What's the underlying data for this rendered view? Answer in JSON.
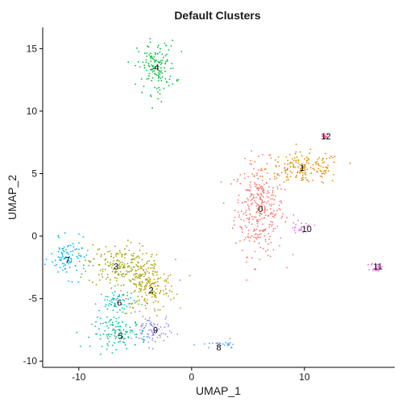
{
  "chart_data": {
    "type": "scatter",
    "title": "Default Clusters",
    "xlabel": "UMAP_1",
    "ylabel": "UMAP_2",
    "xlim": [
      -13.2,
      18.0
    ],
    "ylim": [
      -10.5,
      16.7
    ],
    "x_ticks": [
      -10,
      0,
      10
    ],
    "x_tick_labels": [
      "-10",
      "0",
      "10"
    ],
    "y_ticks": [
      -10,
      -5,
      0,
      5,
      10,
      15
    ],
    "y_tick_labels": [
      "-10",
      "-5",
      "0",
      "5",
      "10",
      "15"
    ],
    "grid": false,
    "legend": "none",
    "series": [
      {
        "name": "0",
        "label": "0",
        "color": "#F8766D",
        "center": [
          6.0,
          2.2
        ],
        "spread": [
          2.6,
          4.4
        ],
        "label_pos": [
          6.1,
          2.2
        ]
      },
      {
        "name": "1",
        "label": "1",
        "color": "#DE8C00",
        "center": [
          10.0,
          5.4
        ],
        "spread": [
          4.0,
          1.5
        ],
        "label_pos": [
          9.8,
          5.5
        ]
      },
      {
        "name": "2",
        "label": "2",
        "color": "#B79F00",
        "center": [
          -3.8,
          -4.0
        ],
        "spread": [
          2.8,
          2.5
        ],
        "label_pos": [
          -3.6,
          -4.3
        ]
      },
      {
        "name": "3",
        "label": "3",
        "color": "#9BA200",
        "center": [
          -6.5,
          -2.3
        ],
        "spread": [
          3.2,
          2.0
        ],
        "label_pos": [
          -6.7,
          -2.4
        ]
      },
      {
        "name": "4",
        "label": "4",
        "color": "#00BA38",
        "center": [
          -3.1,
          13.5
        ],
        "spread": [
          2.0,
          2.5
        ],
        "label_pos": [
          -3.1,
          13.5
        ]
      },
      {
        "name": "5",
        "label": "5",
        "color": "#00C08B",
        "center": [
          -6.4,
          -7.8
        ],
        "spread": [
          2.9,
          1.4
        ],
        "label_pos": [
          -6.3,
          -8.0
        ]
      },
      {
        "name": "6",
        "label": "6",
        "color": "#00BFC4",
        "center": [
          -6.6,
          -5.3
        ],
        "spread": [
          1.9,
          1.3
        ],
        "label_pos": [
          -6.4,
          -5.3
        ]
      },
      {
        "name": "7",
        "label": "7",
        "color": "#00B4F0",
        "center": [
          -10.9,
          -1.8
        ],
        "spread": [
          1.9,
          1.8
        ],
        "label_pos": [
          -11.0,
          -1.9
        ]
      },
      {
        "name": "8",
        "label": "8",
        "color": "#619CFF",
        "center": [
          2.6,
          -8.7
        ],
        "spread": [
          2.2,
          0.4
        ],
        "label_pos": [
          2.4,
          -8.9
        ]
      },
      {
        "name": "9",
        "label": "9",
        "color": "#8D8EF5",
        "center": [
          -3.5,
          -7.6
        ],
        "spread": [
          1.8,
          1.5
        ],
        "label_pos": [
          -3.2,
          -7.5
        ]
      },
      {
        "name": "10",
        "label": "10",
        "color": "#E76BF3",
        "center": [
          9.7,
          0.7
        ],
        "spread": [
          1.3,
          0.5
        ],
        "label_pos": [
          10.2,
          0.6
        ]
      },
      {
        "name": "11",
        "label": "11",
        "color": "#F564E3",
        "center": [
          16.4,
          -2.5
        ],
        "spread": [
          0.6,
          0.4
        ],
        "label_pos": [
          16.5,
          -2.4
        ]
      },
      {
        "name": "12",
        "label": "12",
        "color": "#FF64B0",
        "center": [
          11.8,
          8.0
        ],
        "spread": [
          0.3,
          0.3
        ],
        "label_pos": [
          11.9,
          8.0
        ]
      }
    ]
  }
}
